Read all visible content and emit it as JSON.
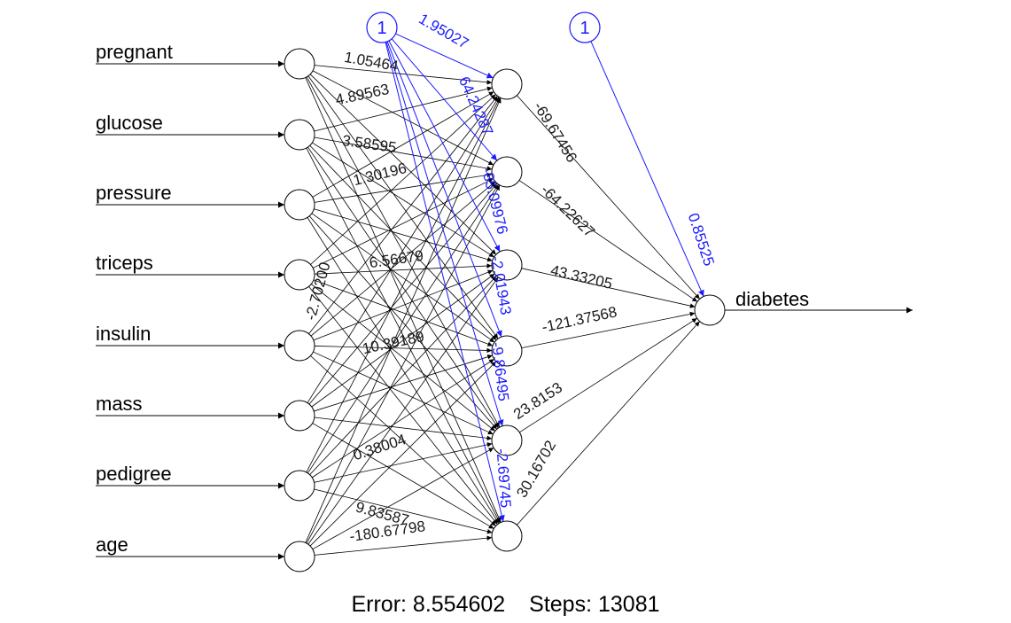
{
  "inputs": [
    "pregnant",
    "glucose",
    "pressure",
    "triceps",
    "insulin",
    "mass",
    "pedigree",
    "age"
  ],
  "output": "diabetes",
  "bias_label": "1",
  "colors": {
    "weights": "#000000",
    "bias": "#1a1aff"
  },
  "input_hidden_weights_visible": [
    "1.05464",
    "4.89563",
    "3.58595",
    "1.30196",
    "6.56679",
    "-2.70200",
    "10.39189",
    "9.83587",
    "-180.67798",
    "0.38004"
  ],
  "bias_hidden_weights": [
    "1.95027",
    "64.24287",
    "-85.09976",
    "-2.01943",
    "-9.86495",
    "-2.69745"
  ],
  "hidden_output_weights": [
    "-69.67456",
    "-64.22627",
    "43.33205",
    "-121.37568",
    "23.8153",
    "30.16702"
  ],
  "bias_output_weight": "0.85525",
  "footer": {
    "error": "Error: 8.554602",
    "steps": "Steps: 13081"
  }
}
